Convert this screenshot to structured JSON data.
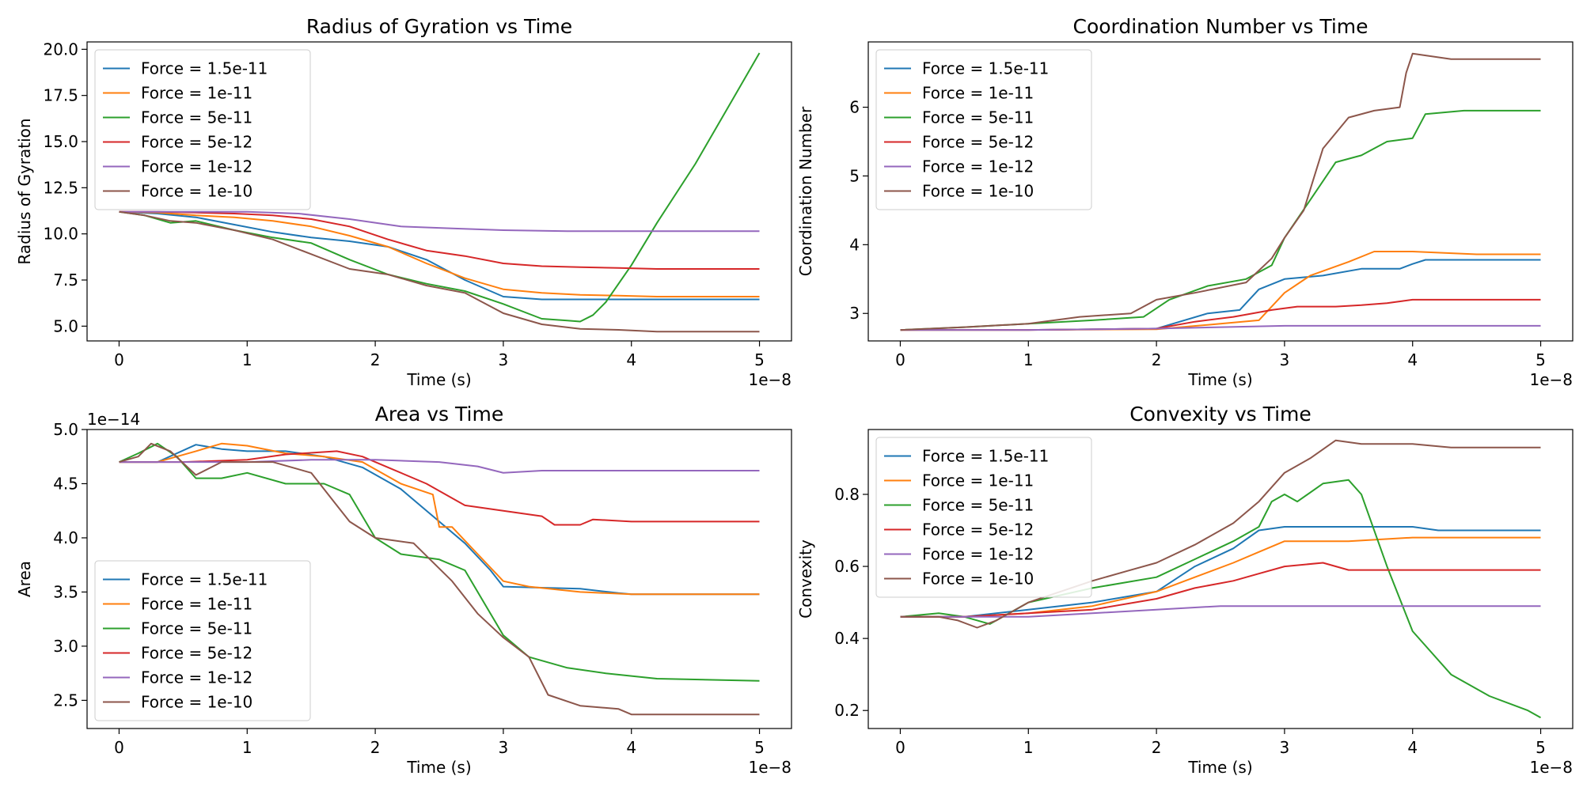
{
  "figure": {
    "width": 2000,
    "height": 1000
  },
  "colors": [
    "#1f77b4",
    "#ff7f0e",
    "#2ca02c",
    "#d62728",
    "#9467bd",
    "#8c564b"
  ],
  "chart_data": [
    {
      "type": "line",
      "title": "Radius of Gyration vs Time",
      "xlabel": "Time (s)",
      "ylabel": "Radius of Gyration",
      "xlim": [
        -0.25,
        5.25
      ],
      "ylim": [
        4.2,
        20.4
      ],
      "xticks": [
        0,
        1,
        2,
        3,
        4,
        5
      ],
      "xtick_labels": [
        "0",
        "1",
        "2",
        "3",
        "4",
        "5"
      ],
      "yticks": [
        5.0,
        7.5,
        10.0,
        12.5,
        15.0,
        17.5,
        20.0
      ],
      "ytick_labels": [
        "5.0",
        "7.5",
        "10.0",
        "12.5",
        "15.0",
        "17.5",
        "20.0"
      ],
      "x_offset_label": "1e−8",
      "y_offset_label": "",
      "legend_position": "top-left",
      "series": [
        {
          "name": "Force = 1.5e-11",
          "x": [
            0,
            0.3,
            0.6,
            0.9,
            1.2,
            1.5,
            1.8,
            2.1,
            2.4,
            2.7,
            3.0,
            3.3,
            3.6,
            3.9,
            4.2,
            4.5,
            5.0
          ],
          "y": [
            11.2,
            11.1,
            10.9,
            10.5,
            10.1,
            9.8,
            9.6,
            9.3,
            8.6,
            7.5,
            6.6,
            6.45,
            6.45,
            6.45,
            6.45,
            6.45,
            6.45
          ]
        },
        {
          "name": "Force = 1e-11",
          "x": [
            0,
            0.3,
            0.6,
            0.9,
            1.2,
            1.5,
            1.8,
            2.1,
            2.4,
            2.55,
            2.7,
            3.0,
            3.3,
            3.6,
            3.9,
            4.2,
            5.0
          ],
          "y": [
            11.2,
            11.15,
            11.0,
            10.9,
            10.7,
            10.4,
            9.9,
            9.3,
            8.4,
            8.0,
            7.6,
            7.0,
            6.8,
            6.7,
            6.65,
            6.6,
            6.6
          ]
        },
        {
          "name": "Force = 5e-11",
          "x": [
            0,
            0.2,
            0.4,
            0.6,
            0.9,
            1.2,
            1.5,
            1.8,
            2.1,
            2.4,
            2.7,
            3.0,
            3.3,
            3.5,
            3.6,
            3.7,
            3.8,
            4.0,
            4.2,
            4.5,
            4.8,
            5.0
          ],
          "y": [
            11.2,
            11.0,
            10.6,
            10.7,
            10.2,
            9.8,
            9.5,
            8.6,
            7.8,
            7.3,
            6.9,
            6.2,
            5.4,
            5.3,
            5.25,
            5.6,
            6.3,
            8.3,
            10.6,
            13.8,
            17.4,
            19.8
          ]
        },
        {
          "name": "Force = 5e-12",
          "x": [
            0,
            0.3,
            0.6,
            0.9,
            1.2,
            1.5,
            1.8,
            2.1,
            2.4,
            2.7,
            3.0,
            3.3,
            3.6,
            3.9,
            4.2,
            5.0
          ],
          "y": [
            11.2,
            11.2,
            11.15,
            11.1,
            11.0,
            10.8,
            10.4,
            9.7,
            9.1,
            8.8,
            8.4,
            8.25,
            8.2,
            8.15,
            8.1,
            8.1
          ]
        },
        {
          "name": "Force = 1e-12",
          "x": [
            0,
            0.5,
            1.0,
            1.4,
            1.8,
            2.2,
            2.6,
            3.0,
            3.5,
            4.0,
            5.0
          ],
          "y": [
            11.2,
            11.2,
            11.2,
            11.1,
            10.8,
            10.4,
            10.3,
            10.2,
            10.15,
            10.15,
            10.15
          ]
        },
        {
          "name": "Force = 1e-10",
          "x": [
            0,
            0.2,
            0.4,
            0.6,
            0.9,
            1.2,
            1.5,
            1.8,
            2.1,
            2.4,
            2.7,
            3.0,
            3.3,
            3.6,
            3.9,
            4.2,
            5.0
          ],
          "y": [
            11.2,
            11.0,
            10.7,
            10.6,
            10.2,
            9.7,
            8.9,
            8.1,
            7.8,
            7.2,
            6.8,
            5.7,
            5.1,
            4.85,
            4.8,
            4.7,
            4.7
          ]
        }
      ]
    },
    {
      "type": "line",
      "title": "Coordination Number vs Time",
      "xlabel": "Time (s)",
      "ylabel": "Coordination Number",
      "xlim": [
        -0.25,
        5.25
      ],
      "ylim": [
        2.6,
        6.95
      ],
      "xticks": [
        0,
        1,
        2,
        3,
        4,
        5
      ],
      "xtick_labels": [
        "0",
        "1",
        "2",
        "3",
        "4",
        "5"
      ],
      "yticks": [
        3,
        4,
        5,
        6
      ],
      "ytick_labels": [
        "3",
        "4",
        "5",
        "6"
      ],
      "x_offset_label": "1e−8",
      "y_offset_label": "",
      "legend_position": "top-left",
      "series": [
        {
          "name": "Force = 1.5e-11",
          "x": [
            0,
            1.0,
            2.0,
            2.4,
            2.65,
            2.8,
            3.0,
            3.3,
            3.6,
            3.9,
            4.0,
            4.1,
            4.5,
            5.0
          ],
          "y": [
            2.76,
            2.76,
            2.78,
            3.0,
            3.05,
            3.35,
            3.5,
            3.55,
            3.65,
            3.65,
            3.72,
            3.78,
            3.78,
            3.78
          ]
        },
        {
          "name": "Force = 1e-11",
          "x": [
            0,
            1.0,
            2.0,
            2.5,
            2.8,
            3.0,
            3.2,
            3.5,
            3.7,
            4.0,
            4.5,
            5.0
          ],
          "y": [
            2.76,
            2.76,
            2.77,
            2.85,
            2.9,
            3.3,
            3.55,
            3.75,
            3.9,
            3.9,
            3.86,
            3.86
          ]
        },
        {
          "name": "Force = 5e-11",
          "x": [
            0,
            0.5,
            1.0,
            1.5,
            1.9,
            2.1,
            2.4,
            2.7,
            2.9,
            3.0,
            3.2,
            3.4,
            3.6,
            3.8,
            4.0,
            4.1,
            4.4,
            5.0
          ],
          "y": [
            2.76,
            2.8,
            2.85,
            2.9,
            2.95,
            3.2,
            3.4,
            3.5,
            3.7,
            4.1,
            4.65,
            5.2,
            5.3,
            5.5,
            5.55,
            5.9,
            5.95,
            5.95
          ]
        },
        {
          "name": "Force = 5e-12",
          "x": [
            0,
            1.0,
            2.0,
            2.3,
            2.6,
            2.9,
            3.1,
            3.4,
            3.6,
            3.8,
            4.0,
            4.5,
            5.0
          ],
          "y": [
            2.76,
            2.76,
            2.78,
            2.88,
            2.95,
            3.05,
            3.1,
            3.1,
            3.12,
            3.15,
            3.2,
            3.2,
            3.2
          ]
        },
        {
          "name": "Force = 1e-12",
          "x": [
            0,
            1.0,
            2.0,
            2.5,
            3.0,
            4.0,
            5.0
          ],
          "y": [
            2.76,
            2.76,
            2.78,
            2.8,
            2.82,
            2.82,
            2.82
          ]
        },
        {
          "name": "Force = 1e-10",
          "x": [
            0,
            0.5,
            1.0,
            1.4,
            1.8,
            2.0,
            2.3,
            2.7,
            2.9,
            3.0,
            3.15,
            3.3,
            3.5,
            3.7,
            3.9,
            3.95,
            4.0,
            4.3,
            5.0
          ],
          "y": [
            2.76,
            2.8,
            2.85,
            2.95,
            3.0,
            3.2,
            3.3,
            3.45,
            3.8,
            4.1,
            4.5,
            5.4,
            5.85,
            5.95,
            6.0,
            6.5,
            6.78,
            6.7,
            6.7
          ]
        }
      ]
    },
    {
      "type": "line",
      "title": "Area vs Time",
      "xlabel": "Time (s)",
      "ylabel": "Area",
      "xlim": [
        -0.25,
        5.25
      ],
      "ylim": [
        2.24,
        5.0
      ],
      "xticks": [
        0,
        1,
        2,
        3,
        4,
        5
      ],
      "xtick_labels": [
        "0",
        "1",
        "2",
        "3",
        "4",
        "5"
      ],
      "yticks": [
        2.5,
        3.0,
        3.5,
        4.0,
        4.5,
        5.0
      ],
      "ytick_labels": [
        "2.5",
        "3.0",
        "3.5",
        "4.0",
        "4.5",
        "5.0"
      ],
      "x_offset_label": "1e−8",
      "y_offset_label": "1e−14",
      "legend_position": "bottom-left",
      "series": [
        {
          "name": "Force = 1.5e-11",
          "x": [
            0,
            0.3,
            0.6,
            0.8,
            1.0,
            1.3,
            1.6,
            1.9,
            2.2,
            2.5,
            2.7,
            2.9,
            3.0,
            3.3,
            3.6,
            3.9,
            4.0,
            5.0
          ],
          "y": [
            4.7,
            4.7,
            4.86,
            4.82,
            4.8,
            4.8,
            4.75,
            4.65,
            4.45,
            4.15,
            3.95,
            3.7,
            3.55,
            3.54,
            3.53,
            3.49,
            3.48,
            3.48
          ]
        },
        {
          "name": "Force = 1e-11",
          "x": [
            0,
            0.3,
            0.6,
            0.8,
            1.0,
            1.3,
            1.6,
            1.9,
            2.2,
            2.45,
            2.5,
            2.6,
            2.8,
            3.0,
            3.2,
            3.6,
            4.0,
            5.0
          ],
          "y": [
            4.7,
            4.7,
            4.8,
            4.87,
            4.85,
            4.78,
            4.75,
            4.7,
            4.5,
            4.4,
            4.1,
            4.1,
            3.85,
            3.6,
            3.55,
            3.5,
            3.48,
            3.48
          ]
        },
        {
          "name": "Force = 5e-11",
          "x": [
            0,
            0.15,
            0.3,
            0.45,
            0.6,
            0.8,
            1.0,
            1.3,
            1.6,
            1.8,
            2.0,
            2.2,
            2.5,
            2.7,
            2.9,
            3.0,
            3.2,
            3.5,
            3.8,
            4.2,
            5.0
          ],
          "y": [
            4.7,
            4.78,
            4.87,
            4.75,
            4.55,
            4.55,
            4.6,
            4.5,
            4.5,
            4.4,
            4.0,
            3.85,
            3.8,
            3.7,
            3.3,
            3.1,
            2.9,
            2.8,
            2.75,
            2.7,
            2.68
          ]
        },
        {
          "name": "Force = 5e-12",
          "x": [
            0,
            0.5,
            1.0,
            1.3,
            1.7,
            1.9,
            2.1,
            2.4,
            2.7,
            3.0,
            3.3,
            3.4,
            3.6,
            3.7,
            4.0,
            5.0
          ],
          "y": [
            4.7,
            4.7,
            4.72,
            4.77,
            4.8,
            4.75,
            4.65,
            4.5,
            4.3,
            4.25,
            4.2,
            4.12,
            4.12,
            4.17,
            4.15,
            4.15
          ]
        },
        {
          "name": "Force = 1e-12",
          "x": [
            0,
            0.5,
            1.0,
            1.5,
            2.0,
            2.5,
            2.8,
            3.0,
            3.3,
            3.6,
            4.0,
            5.0
          ],
          "y": [
            4.7,
            4.7,
            4.7,
            4.72,
            4.72,
            4.7,
            4.66,
            4.6,
            4.62,
            4.62,
            4.62,
            4.62
          ]
        },
        {
          "name": "Force = 1e-10",
          "x": [
            0,
            0.15,
            0.25,
            0.4,
            0.6,
            0.8,
            1.0,
            1.2,
            1.5,
            1.7,
            1.8,
            2.0,
            2.3,
            2.6,
            2.8,
            3.0,
            3.2,
            3.35,
            3.6,
            3.9,
            4.0,
            5.0
          ],
          "y": [
            4.7,
            4.75,
            4.87,
            4.8,
            4.58,
            4.7,
            4.7,
            4.7,
            4.6,
            4.3,
            4.15,
            4.0,
            3.95,
            3.6,
            3.3,
            3.08,
            2.9,
            2.55,
            2.45,
            2.42,
            2.37,
            2.37
          ]
        }
      ]
    },
    {
      "type": "line",
      "title": "Convexity vs Time",
      "xlabel": "Time (s)",
      "ylabel": "Convexity",
      "xlim": [
        -0.25,
        5.25
      ],
      "ylim": [
        0.15,
        0.98
      ],
      "xticks": [
        0,
        1,
        2,
        3,
        4,
        5
      ],
      "xtick_labels": [
        "0",
        "1",
        "2",
        "3",
        "4",
        "5"
      ],
      "yticks": [
        0.2,
        0.4,
        0.6,
        0.8
      ],
      "ytick_labels": [
        "0.2",
        "0.4",
        "0.6",
        "0.8"
      ],
      "x_offset_label": "1e−8",
      "y_offset_label": "",
      "legend_position": "top-left",
      "series": [
        {
          "name": "Force = 1.5e-11",
          "x": [
            0,
            0.5,
            1.0,
            1.5,
            2.0,
            2.3,
            2.6,
            2.8,
            3.0,
            3.5,
            4.0,
            4.2,
            5.0
          ],
          "y": [
            0.46,
            0.46,
            0.48,
            0.5,
            0.53,
            0.6,
            0.65,
            0.7,
            0.71,
            0.71,
            0.71,
            0.7,
            0.7
          ]
        },
        {
          "name": "Force = 1e-11",
          "x": [
            0,
            0.5,
            1.0,
            1.5,
            2.0,
            2.3,
            2.6,
            2.8,
            3.0,
            3.5,
            4.0,
            5.0
          ],
          "y": [
            0.46,
            0.46,
            0.47,
            0.49,
            0.53,
            0.57,
            0.61,
            0.64,
            0.67,
            0.67,
            0.68,
            0.68
          ]
        },
        {
          "name": "Force = 5e-11",
          "x": [
            0,
            0.3,
            0.5,
            0.7,
            1.0,
            1.5,
            2.0,
            2.3,
            2.6,
            2.8,
            2.9,
            3.0,
            3.1,
            3.3,
            3.5,
            3.6,
            3.8,
            4.0,
            4.3,
            4.6,
            4.9,
            5.0
          ],
          "y": [
            0.46,
            0.47,
            0.46,
            0.44,
            0.5,
            0.54,
            0.57,
            0.62,
            0.67,
            0.71,
            0.78,
            0.8,
            0.78,
            0.83,
            0.84,
            0.8,
            0.6,
            0.42,
            0.3,
            0.24,
            0.2,
            0.18
          ]
        },
        {
          "name": "Force = 5e-12",
          "x": [
            0,
            0.5,
            1.0,
            1.5,
            2.0,
            2.3,
            2.6,
            2.8,
            3.0,
            3.3,
            3.5,
            4.0,
            5.0
          ],
          "y": [
            0.46,
            0.46,
            0.47,
            0.48,
            0.51,
            0.54,
            0.56,
            0.58,
            0.6,
            0.61,
            0.59,
            0.59,
            0.59
          ]
        },
        {
          "name": "Force = 1e-12",
          "x": [
            0,
            0.5,
            1.0,
            1.5,
            2.0,
            2.5,
            3.0,
            3.5,
            4.0,
            5.0
          ],
          "y": [
            0.46,
            0.46,
            0.46,
            0.47,
            0.48,
            0.49,
            0.49,
            0.49,
            0.49,
            0.49
          ]
        },
        {
          "name": "Force = 1e-10",
          "x": [
            0,
            0.3,
            0.45,
            0.6,
            0.75,
            1.0,
            1.5,
            1.8,
            2.0,
            2.3,
            2.6,
            2.8,
            3.0,
            3.2,
            3.4,
            3.6,
            4.0,
            4.3,
            5.0
          ],
          "y": [
            0.46,
            0.46,
            0.45,
            0.43,
            0.45,
            0.5,
            0.56,
            0.59,
            0.61,
            0.66,
            0.72,
            0.78,
            0.86,
            0.9,
            0.95,
            0.94,
            0.94,
            0.93,
            0.93
          ]
        }
      ]
    }
  ]
}
